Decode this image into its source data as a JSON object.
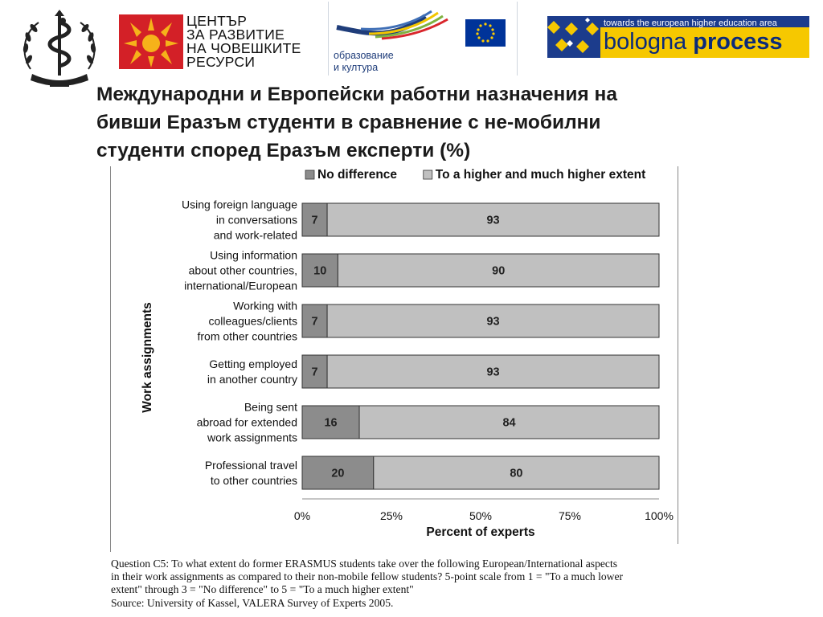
{
  "slide": {
    "title_lines": [
      "Международни и Европейски работни  назначения  на",
      "бивши Еразъм студенти  в сравнение с не-мобилни",
      "студенти според Еразъм експерти (%)"
    ]
  },
  "logos": {
    "hrdc": {
      "name": "hrdc-logo",
      "lines": [
        "ЦЕНТЪР",
        "ЗА РАЗВИТИЕ",
        "НА ЧОВЕШКИТЕ",
        "РЕСУРСИ"
      ],
      "color": "#d32027",
      "accent": "#f6b21a"
    },
    "education": {
      "name": "education-culture-logo",
      "lines": [
        "образование",
        "и култура"
      ],
      "eu_flag_color": "#003399",
      "star_color": "#ffcc00"
    },
    "bologna": {
      "name": "bologna-process-logo",
      "tagline": "towards the european higher education area",
      "word1": "bologna",
      "word2": "process",
      "background": "#f6c800",
      "tag_background": "#1c3c8c"
    },
    "university": {
      "name": "university-seal-logo"
    }
  },
  "chart_data": {
    "type": "bar",
    "orientation": "horizontal",
    "stacked": true,
    "categories": [
      [
        "Using foreign language",
        "in conversations",
        "and work-related"
      ],
      [
        "Using information",
        "about other countries,",
        "international/European"
      ],
      [
        "Working with",
        "colleagues/clients",
        "from other countries"
      ],
      [
        "Getting employed",
        "in another country"
      ],
      [
        "Being sent",
        "abroad for extended",
        "work assignments"
      ],
      [
        "Professional travel",
        "to other countries"
      ]
    ],
    "series": [
      {
        "name": "No difference",
        "values": [
          7,
          10,
          7,
          7,
          16,
          20
        ],
        "color": "#8c8c8c"
      },
      {
        "name": "To a higher and much higher extent",
        "values": [
          93,
          90,
          93,
          93,
          84,
          80
        ],
        "color": "#c0c0c0"
      }
    ],
    "xlabel": "Percent of experts",
    "ylabel": "Work assignments",
    "xlim": [
      0,
      100
    ],
    "xticks": [
      "0%",
      "25%",
      "50%",
      "75%",
      "100%"
    ],
    "grid": false,
    "legend_position": "top"
  },
  "caption_lines": [
    "Question C5: To what extent do former ERASMUS students take over the following European/International aspects",
    "in their work assignments as compared to their non-mobile fellow students? 5-point scale from 1 = \"To a much lower",
    "extent\" through 3 = \"No difference\" to 5 = \"To a much higher extent\"",
    "Source: University of Kassel, VALERA Survey of Experts 2005."
  ]
}
